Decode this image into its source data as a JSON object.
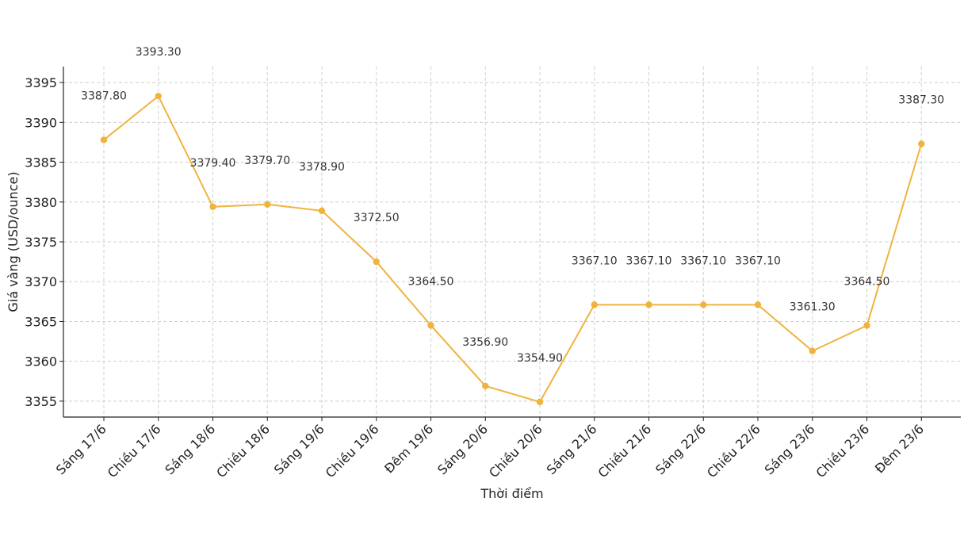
{
  "chart_data": {
    "type": "line",
    "title": "",
    "xlabel": "Thời điểm",
    "ylabel": "Giá vàng (USD/ounce)",
    "categories": [
      "Sáng 17/6",
      "Chiều 17/6",
      "Sáng 18/6",
      "Chiều 18/6",
      "Sáng 19/6",
      "Chiều 19/6",
      "Đêm 19/6",
      "Sáng 20/6",
      "Chiều 20/6",
      "Sáng 21/6",
      "Chiều 21/6",
      "Sáng 22/6",
      "Chiều 22/6",
      "Sáng 23/6",
      "Chiều 23/6",
      "Đêm 23/6"
    ],
    "series": [
      {
        "values": [
          3387.8,
          3393.3,
          3379.4,
          3379.7,
          3378.9,
          3372.5,
          3364.5,
          3356.9,
          3354.9,
          3367.1,
          3367.1,
          3367.1,
          3367.1,
          3361.3,
          3364.5,
          3387.3
        ],
        "labels": [
          "3387.80",
          "3393.30",
          "3379.40",
          "3379.70",
          "3378.90",
          "3372.50",
          "3364.50",
          "3356.90",
          "3354.90",
          "3367.10",
          "3367.10",
          "3367.10",
          "3367.10",
          "3361.30",
          "3364.50",
          "3387.30"
        ],
        "color": "#f0b33e"
      }
    ],
    "yticks": [
      "3355",
      "3360",
      "3365",
      "3370",
      "3375",
      "3380",
      "3385",
      "3390",
      "3395"
    ],
    "ylim": [
      3353,
      3397
    ],
    "grid": true,
    "legend": "none"
  }
}
